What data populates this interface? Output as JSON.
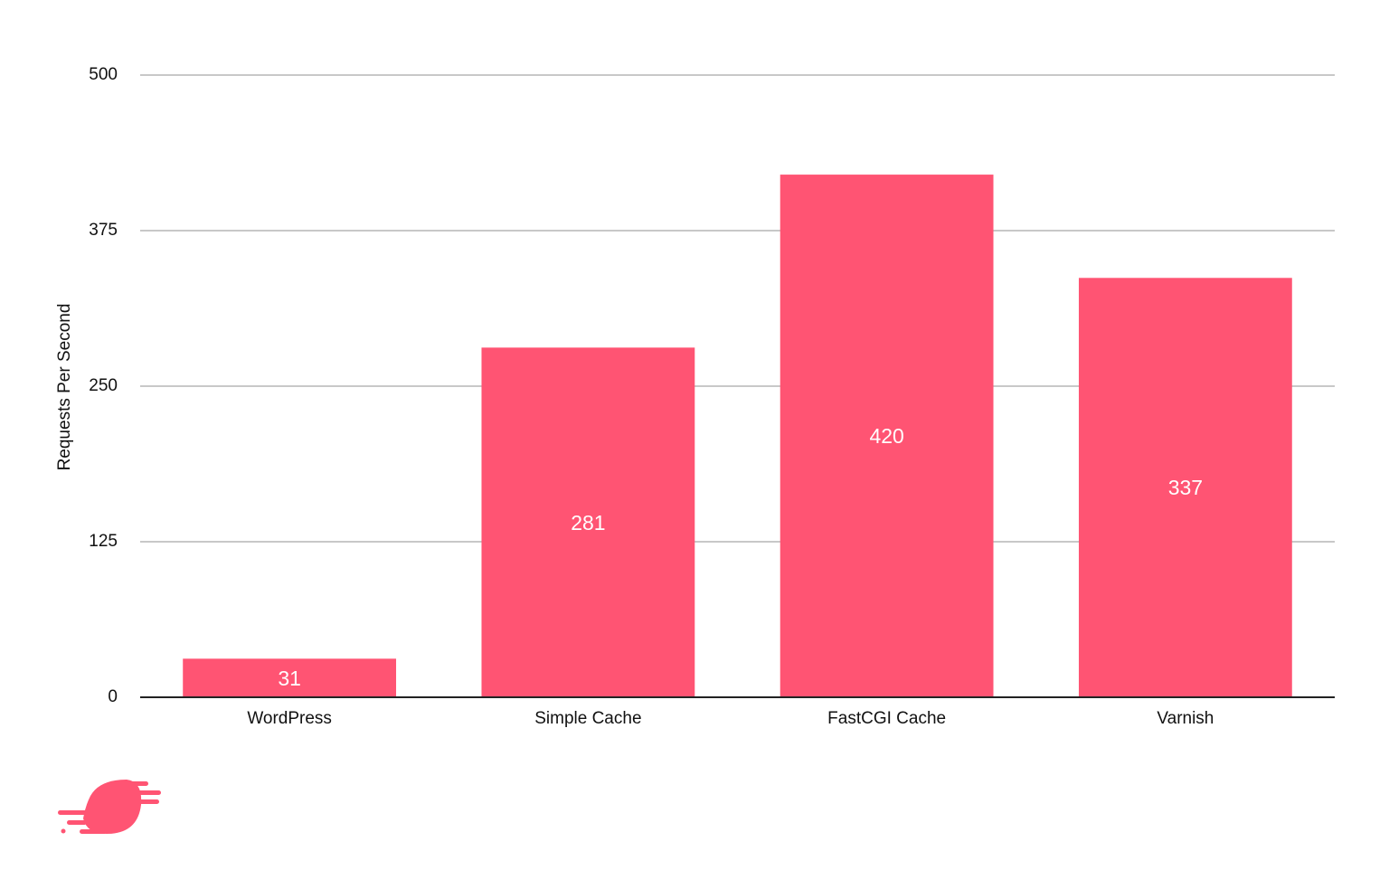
{
  "chart_data": {
    "type": "bar",
    "y_label": "Requests Per Second",
    "categories": [
      "WordPress",
      "Simple Cache",
      "FastCGI Cache",
      "Varnish"
    ],
    "values": [
      31,
      281,
      420,
      337
    ],
    "color": "#ff5473",
    "ylim": [
      0,
      500
    ],
    "yticks": [
      0,
      125,
      250,
      375,
      500
    ],
    "grid": true
  }
}
